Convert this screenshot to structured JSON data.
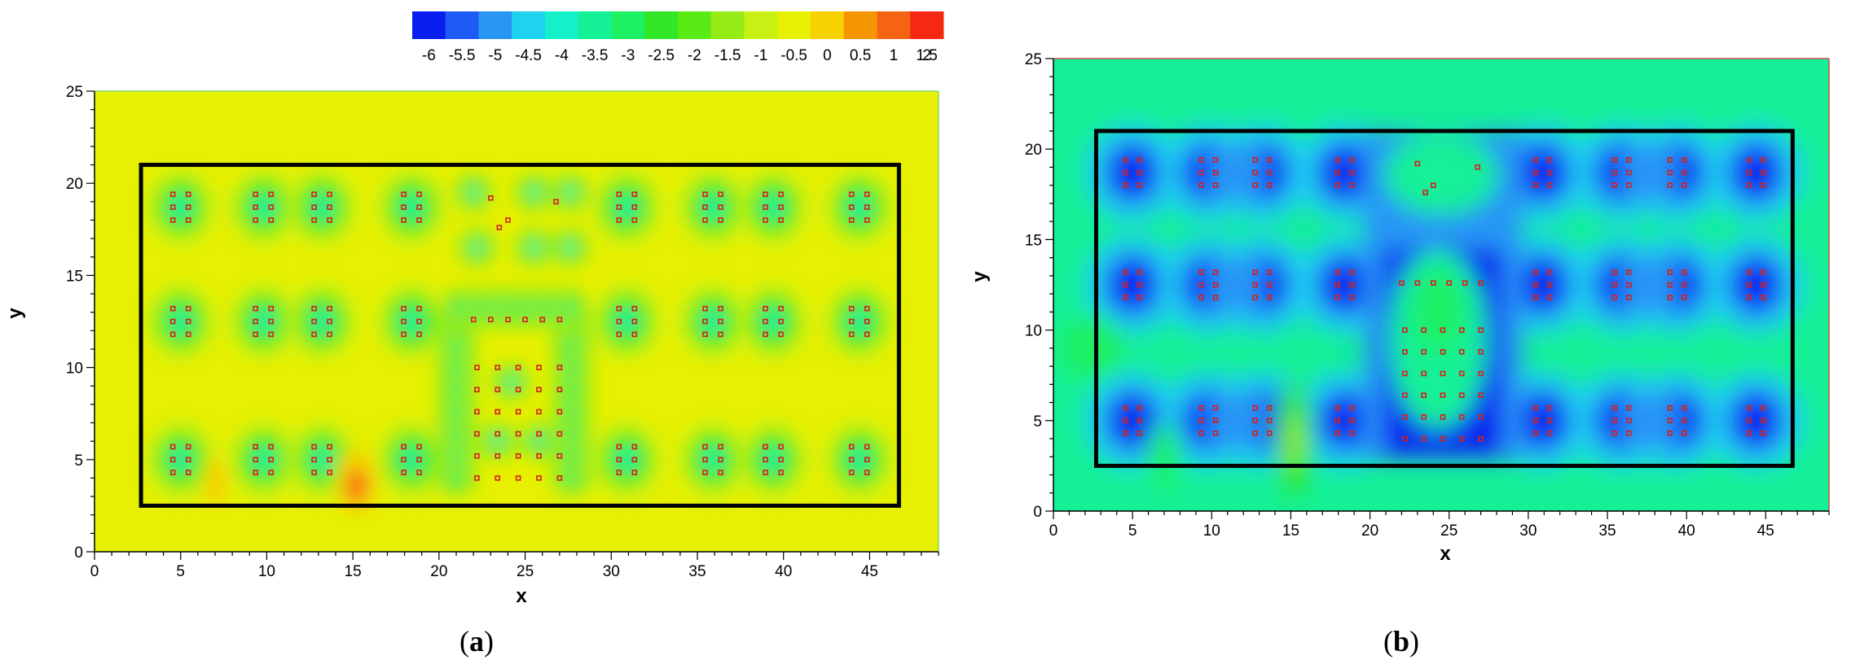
{
  "chart_data": [
    {
      "type": "heatmap",
      "panel_label": "a",
      "xlabel": "x",
      "ylabel": "y",
      "xlim": [
        0,
        49
      ],
      "ylim": [
        0,
        25
      ],
      "xticks": [
        0,
        5,
        10,
        15,
        20,
        25,
        30,
        35,
        40,
        45
      ],
      "yticks": [
        0,
        5,
        10,
        15,
        20,
        25
      ],
      "background_level": -0.5,
      "boundary_rect": {
        "x0": 2.7,
        "y0": 2.5,
        "x1": 46.7,
        "y1": 21.0
      },
      "legend": {
        "placement": "top",
        "levels": [
          -6,
          -5.5,
          -5,
          -4.5,
          -4,
          -3.5,
          -3,
          -2.5,
          -2,
          -1.5,
          -1,
          -0.5,
          0,
          0.5,
          1,
          1.5,
          2
        ],
        "colors": [
          "#0a1ef0",
          "#1e5af5",
          "#2896f5",
          "#1ed2f0",
          "#14f0c8",
          "#14f096",
          "#1ef064",
          "#32e628",
          "#5aeb14",
          "#96eb14",
          "#c8f014",
          "#e6f000",
          "#f5d200",
          "#f59600",
          "#f56414",
          "#f52814"
        ]
      }
    },
    {
      "type": "heatmap",
      "panel_label": "b",
      "xlabel": "x",
      "ylabel": "y",
      "xlim": [
        0,
        49
      ],
      "ylim": [
        0,
        25
      ],
      "xticks": [
        0,
        5,
        10,
        15,
        20,
        25,
        30,
        35,
        40,
        45
      ],
      "yticks": [
        0,
        5,
        10,
        15,
        20,
        25
      ],
      "background_level": -3.5,
      "boundary_rect": {
        "x0": 2.7,
        "y0": 2.5,
        "x1": 46.7,
        "y1": 21.0
      }
    }
  ]
}
